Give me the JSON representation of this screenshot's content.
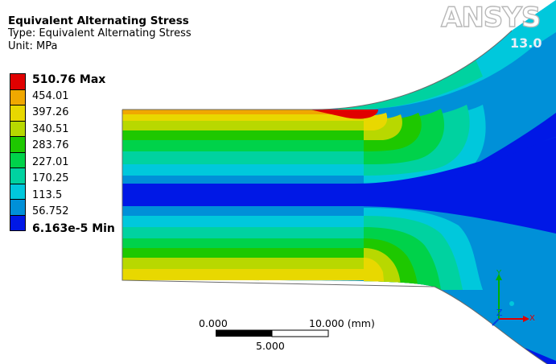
{
  "header": {
    "title": "Equivalent Alternating Stress",
    "type_line": "Type: Equivalent Alternating Stress",
    "unit_line": "Unit: MPa"
  },
  "logo": {
    "text": "ANSYS",
    "version": "13.0"
  },
  "legend": {
    "labels": [
      "510.76 Max",
      "454.01",
      "397.26",
      "340.51",
      "283.76",
      "227.01",
      "170.25",
      "113.5",
      "56.752",
      "6.163e-5 Min"
    ],
    "colors": [
      "#e00000",
      "#f0a800",
      "#e8d800",
      "#b8d800",
      "#1ec800",
      "#00d24a",
      "#00d2a0",
      "#00c8dc",
      "#0090d8",
      "#0018e6"
    ]
  },
  "scale_bar": {
    "left_label": "0.000",
    "right_label": "10.000 (mm)",
    "mid_label": "5.000"
  },
  "triad": {
    "axes": [
      "X",
      "Y",
      "Z"
    ],
    "colors": {
      "x": "#e00000",
      "y": "#00b000",
      "z": "#0040e0",
      "dot": "#00c8dc"
    }
  }
}
